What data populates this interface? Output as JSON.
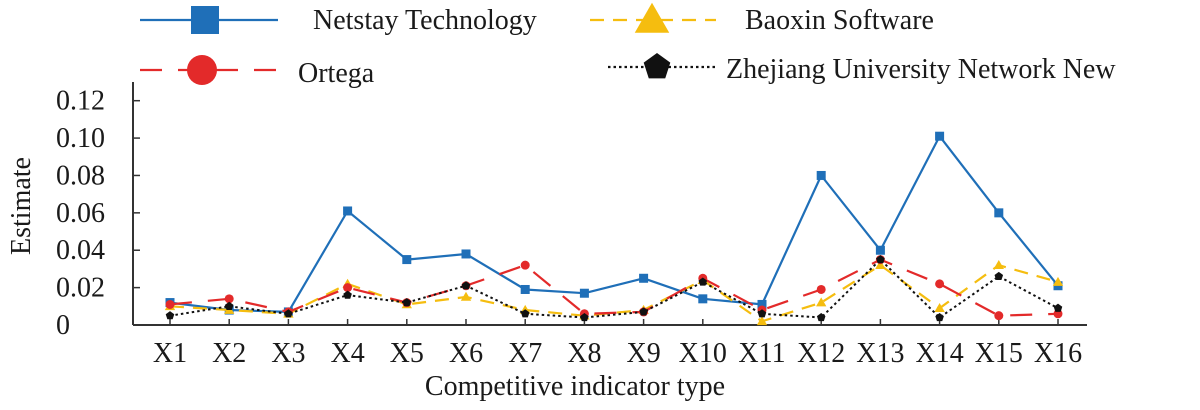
{
  "chart_data": {
    "type": "line",
    "xlabel": "Competitive indicator type",
    "ylabel": "Estimate",
    "categories": [
      "X1",
      "X2",
      "X3",
      "X4",
      "X5",
      "X6",
      "X7",
      "X8",
      "X9",
      "X10",
      "X11",
      "X12",
      "X13",
      "X14",
      "X15",
      "X16"
    ],
    "ylim": [
      0,
      0.13
    ],
    "yticks": [
      0,
      0.02,
      0.04,
      0.06,
      0.08,
      0.1,
      0.12
    ],
    "ytick_labels": [
      "0",
      "0.02",
      "0.04",
      "0.06",
      "0.08",
      "0.10",
      "0.12"
    ],
    "grid": false,
    "legend_position": "top",
    "series": [
      {
        "name": "Netstay Technology",
        "color": "#1f6fb8",
        "line_style": "solid",
        "marker": "square",
        "values": [
          0.012,
          0.008,
          0.007,
          0.061,
          0.035,
          0.038,
          0.019,
          0.017,
          0.025,
          0.014,
          0.011,
          0.08,
          0.04,
          0.101,
          0.06,
          0.021
        ]
      },
      {
        "name": "Baoxin Software",
        "color": "#f5bd0f",
        "line_style": "dashed",
        "marker": "triangle",
        "values": [
          0.01,
          0.008,
          0.006,
          0.022,
          0.011,
          0.015,
          0.008,
          0.005,
          0.008,
          0.024,
          0.002,
          0.012,
          0.032,
          0.009,
          0.032,
          0.023
        ]
      },
      {
        "name": "Ortega",
        "color": "#e32a2a",
        "line_style": "longdash",
        "marker": "circle",
        "values": [
          0.011,
          0.014,
          0.007,
          0.02,
          0.012,
          0.021,
          0.032,
          0.006,
          0.007,
          0.025,
          0.008,
          0.019,
          0.035,
          0.022,
          0.005,
          0.006
        ]
      },
      {
        "name": "Zhejiang University Network New",
        "color": "#111111",
        "line_style": "dotted",
        "marker": "pentagon",
        "values": [
          0.005,
          0.01,
          0.006,
          0.016,
          0.012,
          0.021,
          0.006,
          0.004,
          0.007,
          0.023,
          0.006,
          0.004,
          0.035,
          0.004,
          0.026,
          0.009
        ]
      }
    ]
  }
}
